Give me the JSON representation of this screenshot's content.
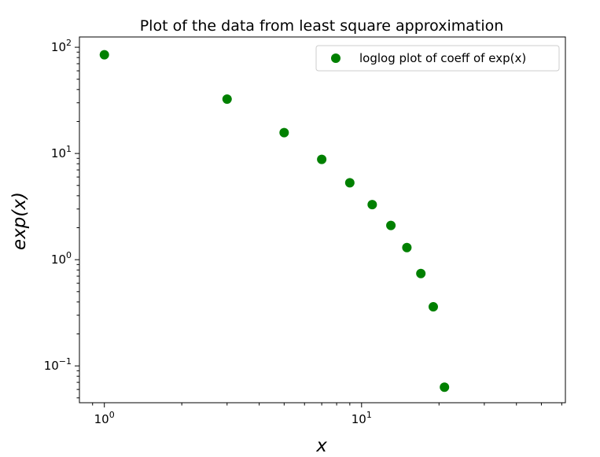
{
  "chart_data": {
    "type": "scatter",
    "title": "Plot of the data from least square approximation",
    "xlabel": "x",
    "ylabel": "exp(x)",
    "xscale": "log",
    "yscale": "log",
    "xlim": [
      0.8,
      62
    ],
    "ylim": [
      0.045,
      125
    ],
    "grid": false,
    "legend_position": "top-right",
    "x_ticks": [
      {
        "value": 1,
        "base": "10",
        "exp": "0"
      },
      {
        "value": 10,
        "base": "10",
        "exp": "1"
      }
    ],
    "y_ticks": [
      {
        "value": 0.1,
        "base": "10",
        "exp": "−1"
      },
      {
        "value": 1,
        "base": "10",
        "exp": "0"
      },
      {
        "value": 10,
        "base": "10",
        "exp": "1"
      },
      {
        "value": 100,
        "base": "10",
        "exp": "2"
      }
    ],
    "series": [
      {
        "name": "loglog plot of coeff of exp(x)",
        "color": "#008000",
        "marker": "circle",
        "x": [
          1,
          3,
          5,
          7,
          9,
          11,
          13,
          15,
          17,
          19,
          21
        ],
        "y": [
          85,
          32.5,
          15.7,
          8.8,
          5.3,
          3.3,
          2.1,
          1.3,
          0.74,
          0.36,
          0.063
        ]
      }
    ]
  }
}
